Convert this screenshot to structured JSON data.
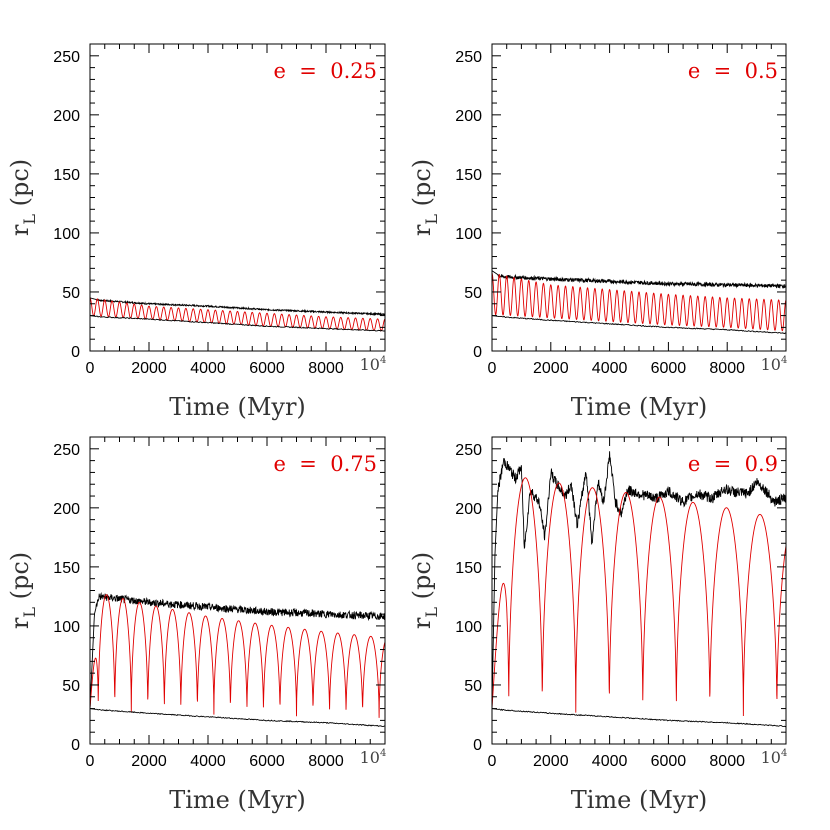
{
  "chart_data": [
    {
      "type": "line",
      "annotation": "e  =  0.25",
      "xlabel": "Time (Myr)",
      "ylabel_main": "r",
      "ylabel_sub": "L",
      "ylabel_tail": " (pc)",
      "xlim": [
        0,
        10000
      ],
      "ylim": [
        0,
        260
      ],
      "xtick_labels": [
        "0",
        "2000",
        "4000",
        "6000",
        "8000"
      ],
      "xtick_values": [
        0,
        2000,
        4000,
        6000,
        8000
      ],
      "x_end_label_base": "10",
      "x_end_label_exp": "4",
      "ytick_labels": [
        "0",
        "50",
        "100",
        "150",
        "200",
        "250"
      ],
      "ytick_values": [
        0,
        50,
        100,
        150,
        200,
        250
      ],
      "series": [
        {
          "kind": "upper",
          "color": "#000000",
          "x": [
            0,
            300,
            2000,
            4000,
            6000,
            8000,
            10000
          ],
          "values": [
            45,
            43,
            40,
            38,
            35,
            33,
            31
          ]
        },
        {
          "kind": "oscillating",
          "color": "#e00000",
          "period": 250,
          "x": [
            0,
            2000,
            4000,
            6000,
            8000,
            10000
          ],
          "max": [
            45,
            38,
            35,
            32,
            29,
            27
          ],
          "min": [
            30,
            27,
            24,
            21,
            19,
            17
          ]
        },
        {
          "kind": "lower",
          "color": "#000000",
          "x": [
            0,
            300,
            2000,
            4000,
            6000,
            8000,
            10000
          ],
          "values": [
            30,
            29,
            27,
            24,
            21,
            19,
            17
          ]
        }
      ]
    },
    {
      "type": "line",
      "annotation": "e  =  0.5",
      "xlabel": "Time (Myr)",
      "ylabel_main": "r",
      "ylabel_sub": "L",
      "ylabel_tail": " (pc)",
      "xlim": [
        0,
        10000
      ],
      "ylim": [
        0,
        260
      ],
      "xtick_labels": [
        "0",
        "2000",
        "4000",
        "6000",
        "8000"
      ],
      "xtick_values": [
        0,
        2000,
        4000,
        6000,
        8000
      ],
      "x_end_label_base": "10",
      "x_end_label_exp": "4",
      "ytick_labels": [
        "0",
        "50",
        "100",
        "150",
        "200",
        "250"
      ],
      "ytick_values": [
        0,
        50,
        100,
        150,
        200,
        250
      ],
      "series": [
        {
          "kind": "upper",
          "color": "#000000",
          "x": [
            0,
            300,
            2000,
            4000,
            6000,
            8000,
            10000
          ],
          "values": [
            68,
            63,
            61,
            59,
            57,
            56,
            55
          ]
        },
        {
          "kind": "oscillating",
          "color": "#e00000",
          "period": 250,
          "x": [
            0,
            2000,
            4000,
            6000,
            8000,
            10000
          ],
          "max": [
            66,
            56,
            52,
            48,
            45,
            43
          ],
          "min": [
            31,
            28,
            25,
            22,
            20,
            17
          ]
        },
        {
          "kind": "lower",
          "color": "#000000",
          "x": [
            0,
            300,
            2000,
            4000,
            6000,
            8000,
            10000
          ],
          "values": [
            30,
            29,
            26,
            23,
            20,
            18,
            15
          ]
        }
      ]
    },
    {
      "type": "line",
      "annotation": "e  =  0.75",
      "xlabel": "Time (Myr)",
      "ylabel_main": "r",
      "ylabel_sub": "L",
      "ylabel_tail": " (pc)",
      "xlim": [
        0,
        10000
      ],
      "ylim": [
        0,
        260
      ],
      "xtick_labels": [
        "0",
        "2000",
        "4000",
        "6000",
        "8000"
      ],
      "xtick_values": [
        0,
        2000,
        4000,
        6000,
        8000
      ],
      "x_end_label_base": "10",
      "x_end_label_exp": "4",
      "ytick_labels": [
        "0",
        "50",
        "100",
        "150",
        "200",
        "250"
      ],
      "ytick_values": [
        0,
        50,
        100,
        150,
        200,
        250
      ],
      "series": [
        {
          "kind": "upper",
          "color": "#000000",
          "x": [
            0,
            150,
            300,
            2000,
            4000,
            6000,
            8000,
            10000
          ],
          "values": [
            30,
            110,
            125,
            120,
            116,
            112,
            110,
            108
          ]
        },
        {
          "kind": "oscillating",
          "color": "#e00000",
          "period": 560,
          "x": [
            0,
            300,
            2000,
            4000,
            6000,
            8000,
            10000
          ],
          "max": [
            30,
            128,
            118,
            108,
            101,
            95,
            90
          ],
          "min": [
            30,
            28,
            26,
            25,
            24,
            23,
            22
          ]
        },
        {
          "kind": "lower",
          "color": "#000000",
          "x": [
            0,
            300,
            2000,
            4000,
            6000,
            8000,
            10000
          ],
          "values": [
            30,
            29,
            26,
            23,
            20,
            18,
            15
          ]
        }
      ]
    },
    {
      "type": "line",
      "annotation": "e  =  0.9",
      "xlabel": "Time (Myr)",
      "ylabel_main": "r",
      "ylabel_sub": "L",
      "ylabel_tail": " (pc)",
      "xlim": [
        0,
        10000
      ],
      "ylim": [
        0,
        260
      ],
      "xtick_labels": [
        "0",
        "2000",
        "4000",
        "6000",
        "8000"
      ],
      "xtick_values": [
        0,
        2000,
        4000,
        6000,
        8000
      ],
      "x_end_label_base": "10",
      "x_end_label_exp": "4",
      "ytick_labels": [
        "0",
        "50",
        "100",
        "150",
        "200",
        "250"
      ],
      "ytick_values": [
        0,
        50,
        100,
        150,
        200,
        250
      ],
      "series": [
        {
          "kind": "upper",
          "color": "#000000",
          "x": [
            0,
            100,
            200,
            400,
            800,
            1000,
            1100,
            1300,
            1600,
            1800,
            2000,
            2200,
            2500,
            2700,
            2900,
            3200,
            3400,
            3600,
            3800,
            4000,
            4200,
            4400,
            4600,
            5000,
            5600,
            6000,
            6500,
            7000,
            7500,
            7900,
            8300,
            8700,
            9000,
            9300,
            9600,
            10000
          ],
          "values": [
            30,
            160,
            215,
            240,
            225,
            235,
            165,
            215,
            205,
            175,
            230,
            220,
            210,
            220,
            185,
            232,
            170,
            222,
            205,
            245,
            205,
            195,
            215,
            212,
            208,
            214,
            205,
            212,
            208,
            216,
            213,
            212,
            222,
            215,
            205,
            208
          ]
        },
        {
          "kind": "oscillating",
          "color": "#e00000",
          "period": 1140,
          "x": [
            0,
            500,
            2000,
            4000,
            6000,
            8000,
            10000
          ],
          "max": [
            30,
            228,
            222,
            215,
            208,
            200,
            190
          ],
          "min": [
            30,
            28,
            27,
            26,
            25,
            24,
            23
          ]
        },
        {
          "kind": "lower",
          "color": "#000000",
          "x": [
            0,
            300,
            2000,
            4000,
            6000,
            8000,
            10000
          ],
          "values": [
            30,
            29,
            26,
            23,
            20,
            18,
            15
          ]
        }
      ]
    }
  ]
}
